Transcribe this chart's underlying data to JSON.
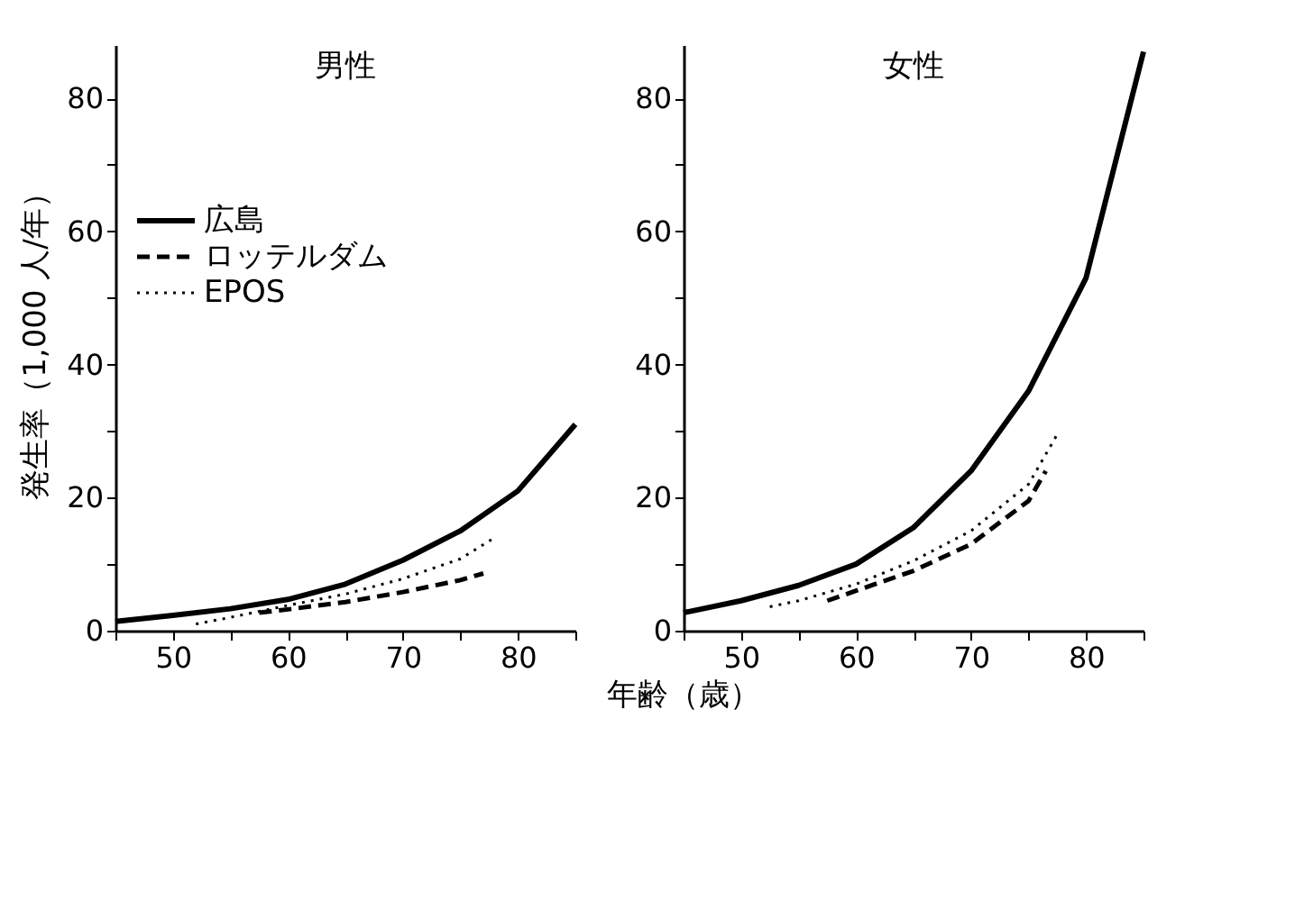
{
  "chart_data": [
    {
      "type": "line",
      "title": "男性",
      "ylabel": "発生率（1,000 人/年）",
      "xlabel": "年齢（歳）",
      "xlim": [
        45,
        85
      ],
      "ylim": [
        0,
        88
      ],
      "xticks": [
        {
          "value": 45,
          "label": null
        },
        50,
        {
          "value": 55,
          "label": null
        },
        60,
        {
          "value": 65,
          "label": null
        },
        70,
        {
          "value": 75,
          "label": null
        },
        80,
        {
          "value": 85,
          "label": null
        }
      ],
      "yticks": [
        0,
        {
          "value": 10,
          "label": null
        },
        20,
        {
          "value": 30,
          "label": null
        },
        40,
        {
          "value": 50,
          "label": null
        },
        60,
        {
          "value": 70,
          "label": null
        },
        80
      ],
      "legend": "left",
      "grid": false,
      "marker": "none",
      "series": [
        {
          "name": "広島",
          "color": "#000000",
          "line_style": "solid",
          "x": [
            45,
            50,
            55,
            60,
            65,
            70,
            75,
            80,
            85
          ],
          "values": [
            1.4,
            2.3,
            3.3,
            4.7,
            7,
            10.6,
            15,
            21,
            31
          ]
        },
        {
          "name": "ロッテルダム",
          "color": "#000000",
          "line_style": "dashed",
          "x": [
            57.5,
            60,
            65,
            70,
            75,
            77
          ],
          "values": [
            2.7,
            3.2,
            4.3,
            5.8,
            7.6,
            8.6
          ]
        },
        {
          "name": "EPOS",
          "color": "#000000",
          "line_style": "dotted",
          "x": [
            52,
            55,
            60,
            65,
            70,
            75,
            78
          ],
          "values": [
            1,
            2,
            3.8,
            5.5,
            7.8,
            10.8,
            14
          ]
        }
      ]
    },
    {
      "type": "line",
      "title": "女性",
      "xlim": [
        45,
        85
      ],
      "ylim": [
        0,
        88
      ],
      "xticks": [
        {
          "value": 45,
          "label": null
        },
        50,
        {
          "value": 55,
          "label": null
        },
        60,
        {
          "value": 65,
          "label": null
        },
        70,
        {
          "value": 75,
          "label": null
        },
        80,
        {
          "value": 85,
          "label": null
        }
      ],
      "yticks": [
        0,
        {
          "value": 10,
          "label": null
        },
        20,
        {
          "value": 30,
          "label": null
        },
        40,
        {
          "value": 50,
          "label": null
        },
        60,
        {
          "value": 70,
          "label": null
        },
        80
      ],
      "legend": false,
      "grid": false,
      "marker": "none",
      "series": [
        {
          "color": "#000000",
          "line_style": "solid",
          "x": [
            45,
            50,
            55,
            60,
            65,
            70,
            75,
            80,
            85
          ],
          "values": [
            2.7,
            4.5,
            6.8,
            10,
            15.5,
            24,
            36,
            53,
            87
          ]
        },
        {
          "color": "#000000",
          "line_style": "dashed",
          "x": [
            57.5,
            60,
            65,
            70,
            75,
            76.5
          ],
          "values": [
            4.5,
            6,
            9,
            13,
            19.5,
            24
          ]
        },
        {
          "color": "#000000",
          "line_style": "dotted",
          "x": [
            52.5,
            55,
            60,
            65,
            70,
            75,
            77.5
          ],
          "values": [
            3.6,
            4.5,
            7,
            10.5,
            15,
            22,
            29.5
          ]
        }
      ]
    }
  ]
}
